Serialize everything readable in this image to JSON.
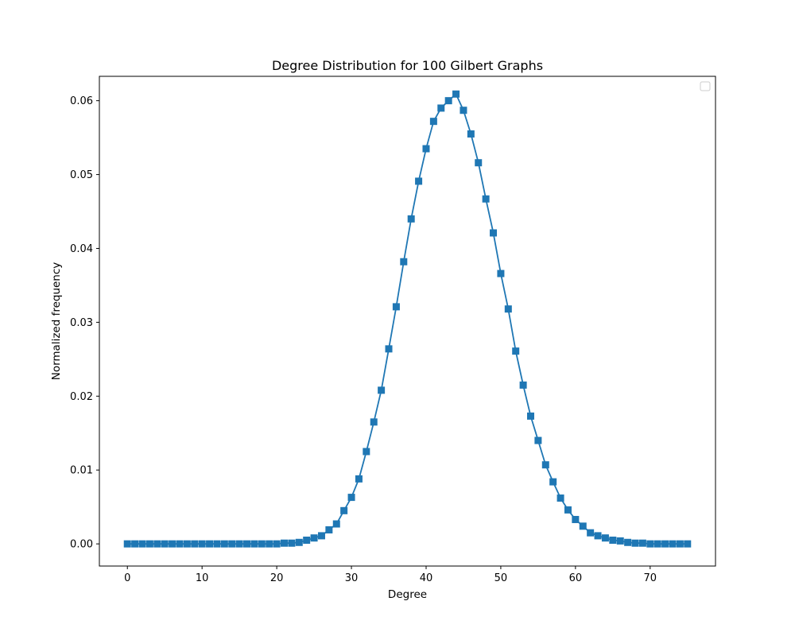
{
  "chart_data": {
    "type": "line",
    "title": "Degree Distribution for 100 Gilbert Graphs",
    "xlabel": "Degree",
    "ylabel": "Normalized frequency",
    "xlim": [
      -3.75,
      78.75
    ],
    "ylim": [
      -0.003,
      0.0633
    ],
    "xticks": [
      0,
      10,
      20,
      30,
      40,
      50,
      60,
      70
    ],
    "xtick_labels": [
      "0",
      "10",
      "20",
      "30",
      "40",
      "50",
      "60",
      "70"
    ],
    "yticks": [
      0.0,
      0.01,
      0.02,
      0.03,
      0.04,
      0.05,
      0.06
    ],
    "ytick_labels": [
      "0.00",
      "0.01",
      "0.02",
      "0.03",
      "0.04",
      "0.05",
      "0.06"
    ],
    "grid": false,
    "legend": {
      "position": "upper-right",
      "entries": []
    },
    "marker": "square",
    "series": [
      {
        "color": "#1f77b4",
        "x": [
          0,
          1,
          2,
          3,
          4,
          5,
          6,
          7,
          8,
          9,
          10,
          11,
          12,
          13,
          14,
          15,
          16,
          17,
          18,
          19,
          20,
          21,
          22,
          23,
          24,
          25,
          26,
          27,
          28,
          29,
          30,
          31,
          32,
          33,
          34,
          35,
          36,
          37,
          38,
          39,
          40,
          41,
          42,
          43,
          44,
          45,
          46,
          47,
          48,
          49,
          50,
          51,
          52,
          53,
          54,
          55,
          56,
          57,
          58,
          59,
          60,
          61,
          62,
          63,
          64,
          65,
          66,
          67,
          68,
          69,
          70,
          71,
          72,
          73,
          74,
          75
        ],
        "y": [
          0,
          0,
          0,
          0,
          0,
          0,
          0,
          0,
          0,
          0,
          0,
          0,
          0,
          0,
          0,
          0,
          0,
          0,
          0,
          0,
          0,
          0.0001,
          0.0001,
          0.0002,
          0.0005,
          0.0008,
          0.0011,
          0.0019,
          0.0027,
          0.0045,
          0.0063,
          0.0088,
          0.0125,
          0.0165,
          0.0208,
          0.0264,
          0.0321,
          0.0382,
          0.044,
          0.0491,
          0.0535,
          0.0572,
          0.059,
          0.06,
          0.0609,
          0.0587,
          0.0555,
          0.0516,
          0.0467,
          0.0421,
          0.0366,
          0.0318,
          0.0261,
          0.0215,
          0.0173,
          0.014,
          0.0107,
          0.0084,
          0.0062,
          0.0046,
          0.0033,
          0.0024,
          0.0015,
          0.0011,
          0.0008,
          0.0005,
          0.0004,
          0.0002,
          0.0001,
          0.0001,
          0,
          0,
          0,
          0,
          0,
          0
        ]
      }
    ]
  }
}
